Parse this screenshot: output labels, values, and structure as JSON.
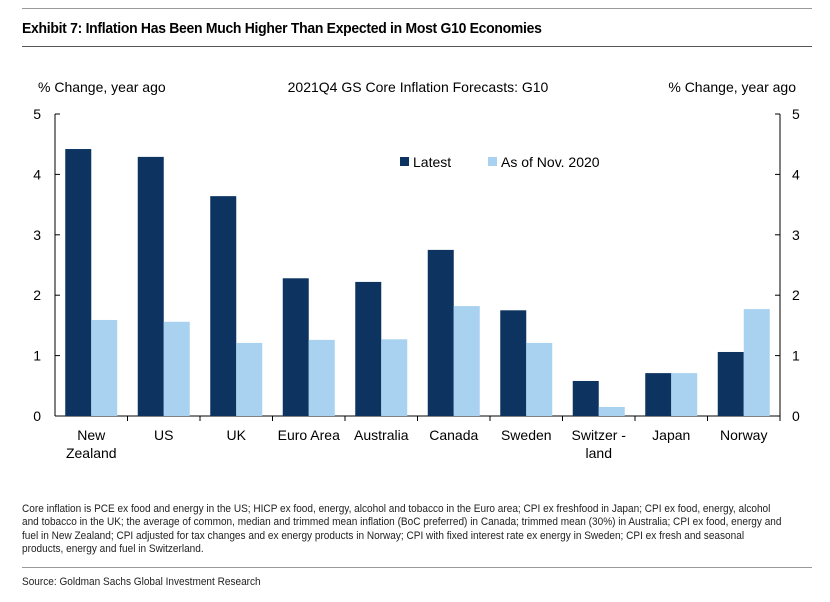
{
  "title": "Exhibit 7: Inflation Has Been Much Higher Than Expected in Most G10 Economies",
  "chart_data": {
    "type": "bar",
    "title": "2021Q4 GS Core Inflation Forecasts: G10",
    "ylabel_left": "% Change, year ago",
    "ylabel_right": "% Change, year ago",
    "ylim": [
      0,
      5
    ],
    "yticks": [
      "0",
      "1",
      "2",
      "3",
      "4",
      "5"
    ],
    "categories": [
      [
        "New",
        "Zealand"
      ],
      [
        "US"
      ],
      [
        "UK"
      ],
      [
        "Euro Area"
      ],
      [
        "Australia"
      ],
      [
        "Canada"
      ],
      [
        "Sweden"
      ],
      [
        "Switzer -",
        "land"
      ],
      [
        "Japan"
      ],
      [
        "Norway"
      ]
    ],
    "series": [
      {
        "name": "Latest",
        "color": "#0d3461",
        "values": [
          4.42,
          4.29,
          3.64,
          2.28,
          2.22,
          2.75,
          1.75,
          0.58,
          0.71,
          1.06
        ]
      },
      {
        "name": "As of Nov. 2020",
        "color": "#a8d2f0",
        "values": [
          1.59,
          1.56,
          1.21,
          1.26,
          1.27,
          1.82,
          1.21,
          0.15,
          0.71,
          1.77
        ]
      }
    ],
    "legend_position": "top-center",
    "grid": false
  },
  "footnote": "Core inflation is PCE ex food and energy in the US; HICP ex food, energy, alcohol and tobacco in the Euro area; CPI ex freshfood in Japan; CPI ex food, energy, alcohol and tobacco in the UK; the average of common, median and trimmed mean inflation (BoC preferred) in Canada; trimmed mean (30%) in Australia; CPI ex food, energy and fuel in New Zealand; CPI adjusted for tax changes and ex energy products in Norway; CPI with fixed interest rate ex energy in Sweden; CPI ex fresh and seasonal products, energy and fuel in Switzerland.",
  "source": "Source: Goldman Sachs Global Investment Research"
}
